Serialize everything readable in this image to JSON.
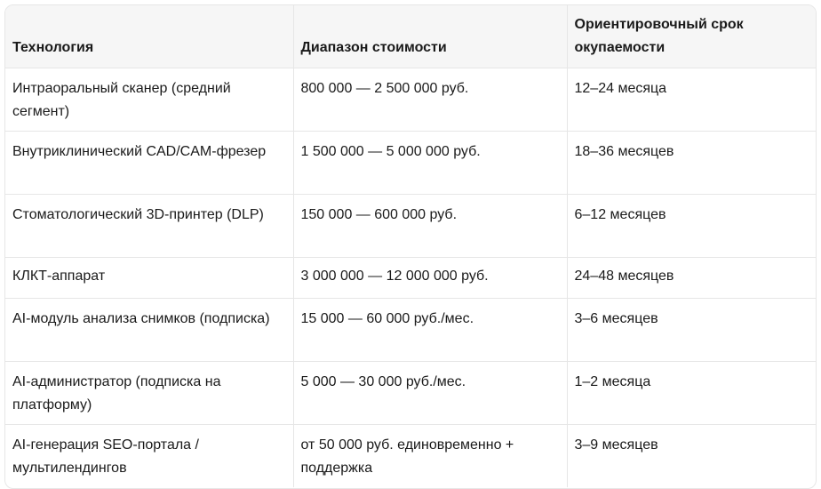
{
  "table": {
    "headers": [
      "Технология",
      "Диапазон стоимости",
      "Ориентировочный срок окупаемости"
    ],
    "rows": [
      [
        "Интраоральный сканер (средний сегмент)",
        "800 000 — 2 500 000 руб.",
        "12–24 месяца"
      ],
      [
        "Внутриклинический CAD/CAM-фрезер",
        "1 500 000 — 5 000 000 руб.",
        "18–36 месяцев"
      ],
      [
        "Стоматологический 3D-принтер (DLP)",
        "150 000 — 600 000 руб.",
        "6–12 месяцев"
      ],
      [
        "КЛКТ-аппарат",
        "3 000 000 — 12 000 000 руб.",
        "24–48 месяцев"
      ],
      [
        "AI-модуль анализа снимков (подписка)",
        "15 000 — 60 000 руб./мес.",
        "3–6 месяцев"
      ],
      [
        "AI-администратор (подписка на платформу)",
        "5 000 — 30 000 руб./мес.",
        "1–2 месяца"
      ],
      [
        "AI-генерация SEO-портала / мультилендингов",
        "от 50 000 руб. единовременно + поддержка",
        "3–9 месяцев"
      ]
    ]
  }
}
